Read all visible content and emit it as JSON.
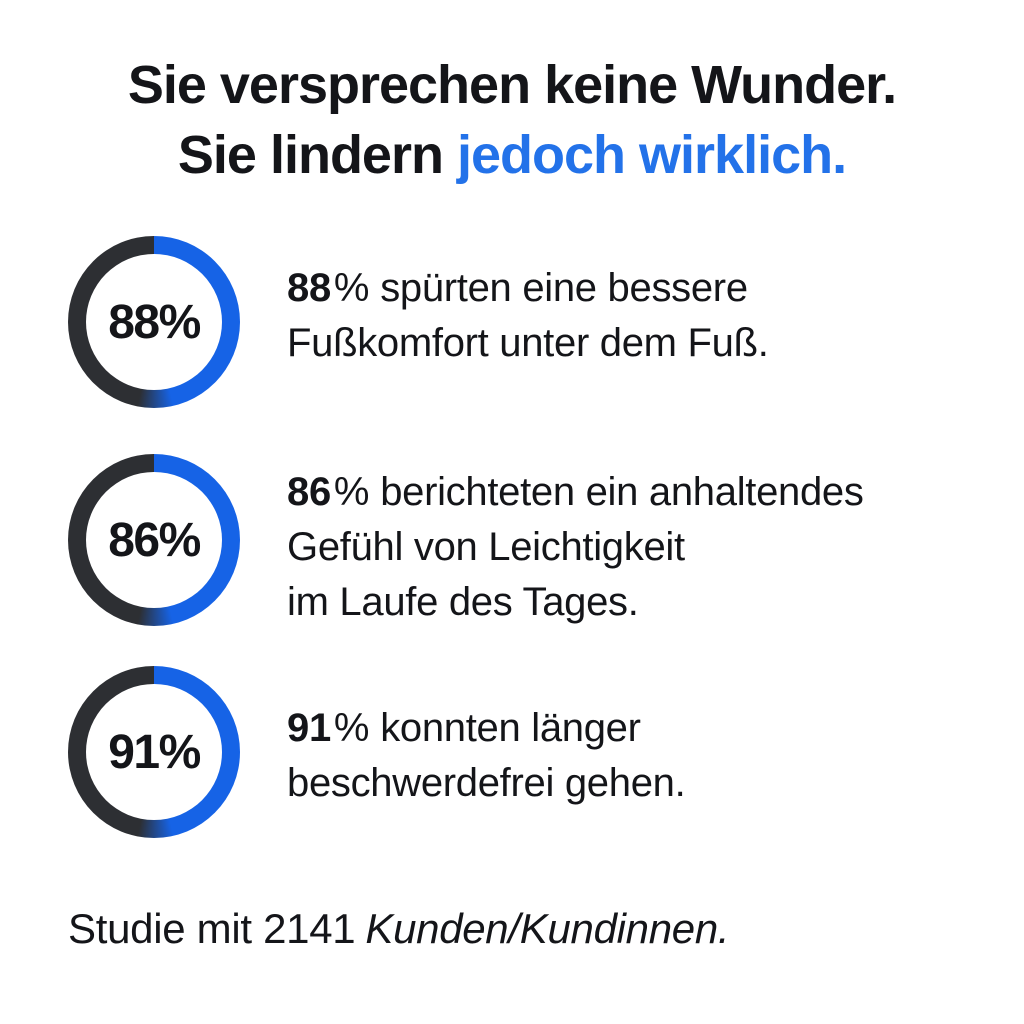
{
  "title": {
    "line1": "Sie versprechen keine Wunder.",
    "line2_black": "Sie lindern",
    "line2_accent": "jedoch wirklich."
  },
  "stats": [
    {
      "ring_label": "88%",
      "number": "88",
      "unit": "%",
      "line1": "spürten eine bessere",
      "lines": [
        "Fußkomfort unter dem Fuß."
      ]
    },
    {
      "ring_label": "86%",
      "number": "86",
      "unit": "%",
      "line1": "berichteten ein anhaltendes",
      "lines": [
        "Gefühl von Leichtigkeit",
        "im Laufe des Tages."
      ]
    },
    {
      "ring_label": "91%",
      "number": "91",
      "unit": "%",
      "line1": "konnten länger",
      "lines": [
        "beschwerdefrei gehen."
      ]
    }
  ],
  "footer": {
    "regular": "Studie mit 2141",
    "italic": "Kunden/Kundinnen."
  },
  "colors": {
    "background": "#ffffff",
    "text": "#141519",
    "accent": "#2372e9",
    "ring_blue": "#1663e6",
    "ring_dark": "#2d2f33"
  },
  "chart_data": {
    "type": "pie",
    "subtype": "donut_progress_rings",
    "title": "Sie versprechen keine Wunder. Sie lindern jedoch wirklich.",
    "series": [
      {
        "label": "88%",
        "value": 88,
        "text": "88 % spürten eine bessere Fußkomfort unter dem Fuß."
      },
      {
        "label": "86%",
        "value": 86,
        "text": "86 % berichteten ein anhaltendes Gefühl von Leichtigkeit im Laufe des Tages."
      },
      {
        "label": "91%",
        "value": 91,
        "text": "91 % konnten länger beschwerdefrei gehen."
      }
    ],
    "footnote": "Studie mit 2141 Kunden/Kundinnen.",
    "arc_colors": {
      "blue": "#1663e6",
      "dark": "#2d2f33"
    },
    "visual_note": "each ring is drawn ~50% blue (right half from 12 o'clock) and ~50% dark with a short gradient blend near 6 o'clock; percentage value shown as bold label in ring center"
  }
}
